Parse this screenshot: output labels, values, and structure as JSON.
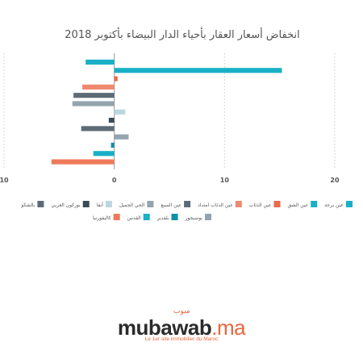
{
  "chart_data": {
    "type": "bar",
    "orientation": "horizontal",
    "title": "انخفاض أسعار العقار بأحياء الدار البيضاء بأكتوبر 2018",
    "xlabel": "",
    "ylabel": "",
    "xlim": [
      -10,
      20
    ],
    "x_ticks": [
      "10",
      "0",
      "10",
      "20"
    ],
    "grid": "vertical dashed",
    "legend_position": "bottom",
    "series": [
      {
        "name": "عين برجة",
        "value": -2.6,
        "color": "#19b0c5"
      },
      {
        "name": "عين الشق",
        "value": 15.2,
        "color": "#19b0c5"
      },
      {
        "name": "عين الذئاب",
        "value": 0.3,
        "color": "#ea6a4b"
      },
      {
        "name": "عين الذئاب امتداد",
        "value": -2.9,
        "color": "#ef8a70"
      },
      {
        "name": "عين السبع",
        "value": -3.7,
        "color": "#5d6b77"
      },
      {
        "name": "الحي الجميل",
        "value": -3.8,
        "color": "#93a4ae"
      },
      {
        "name": "أنفا",
        "value": 1.0,
        "color": "#bad7e0"
      },
      {
        "name": "بوركون الغربي",
        "value": -0.5,
        "color": "#3b4a55"
      },
      {
        "name": "بالشكو",
        "value": -3.0,
        "color": "#5d6b77"
      },
      {
        "name": "بوسيجور",
        "value": 1.3,
        "color": "#93a4ae"
      },
      {
        "name": "بلفدير",
        "value": -0.3,
        "color": "#0f8fa8"
      },
      {
        "name": "القدس",
        "value": -1.9,
        "color": "#19b0c5"
      },
      {
        "name": "كاليفورنيا",
        "value": -5.7,
        "color": "#ef7a5c"
      }
    ]
  },
  "brand": {
    "arabic": "مبوب",
    "name": "mubawab",
    "tld": ".ma",
    "tagline": "Le 1er site immobilier du Maroc"
  }
}
